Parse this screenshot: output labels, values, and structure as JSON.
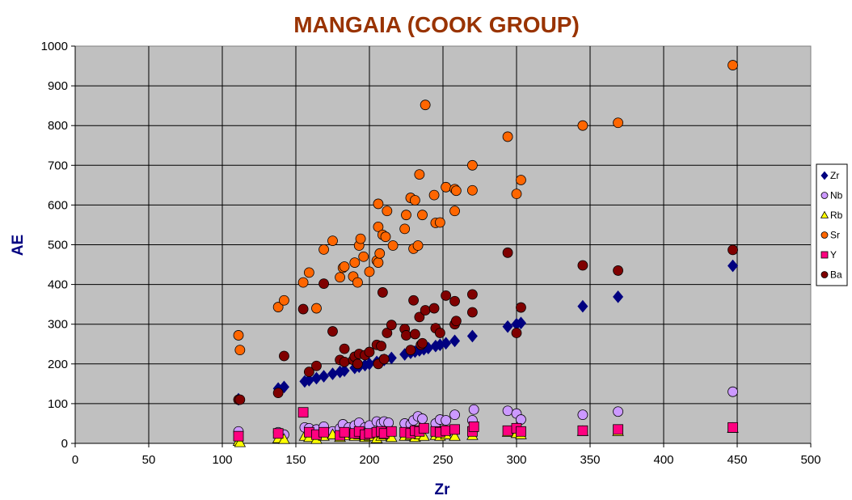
{
  "chart_data": {
    "type": "scatter",
    "title": "MANGAIA  (COOK GROUP)",
    "xlabel": "Zr",
    "ylabel": "AE",
    "xlim": [
      0,
      500
    ],
    "ylim": [
      0,
      1000
    ],
    "x_ticks": [
      "0",
      "50",
      "100",
      "150",
      "200",
      "250",
      "300",
      "350",
      "400",
      "450",
      "500"
    ],
    "y_ticks": [
      "0",
      "100",
      "200",
      "300",
      "400",
      "500",
      "600",
      "700",
      "800",
      "900",
      "1000"
    ],
    "grid": true,
    "legend_position": "right",
    "series": [
      {
        "name": "Zr",
        "marker": "diamond",
        "color": "#000080",
        "points": [
          [
            111,
            111
          ],
          [
            138,
            138
          ],
          [
            142,
            142
          ],
          [
            156,
            156
          ],
          [
            159,
            159
          ],
          [
            164,
            164
          ],
          [
            169,
            169
          ],
          [
            175,
            175
          ],
          [
            180,
            180
          ],
          [
            183,
            183
          ],
          [
            190,
            190
          ],
          [
            193,
            193
          ],
          [
            197,
            197
          ],
          [
            200,
            200
          ],
          [
            205,
            205
          ],
          [
            208,
            208
          ],
          [
            210,
            210
          ],
          [
            215,
            215
          ],
          [
            224,
            224
          ],
          [
            228,
            228
          ],
          [
            231,
            231
          ],
          [
            234,
            234
          ],
          [
            237,
            237
          ],
          [
            240,
            240
          ],
          [
            245,
            245
          ],
          [
            248,
            248
          ],
          [
            252,
            252
          ],
          [
            258,
            258
          ],
          [
            270,
            270
          ],
          [
            294,
            294
          ],
          [
            300,
            300
          ],
          [
            303,
            303
          ],
          [
            345,
            345
          ],
          [
            369,
            369
          ],
          [
            447,
            447
          ]
        ]
      },
      {
        "name": "Nb",
        "marker": "circle",
        "color": "#CC99FF",
        "points": [
          [
            111,
            30
          ],
          [
            138,
            28
          ],
          [
            142,
            22
          ],
          [
            156,
            40
          ],
          [
            159,
            38
          ],
          [
            164,
            35
          ],
          [
            169,
            42
          ],
          [
            175,
            30
          ],
          [
            180,
            38
          ],
          [
            182,
            48
          ],
          [
            186,
            40
          ],
          [
            190,
            45
          ],
          [
            193,
            52
          ],
          [
            197,
            40
          ],
          [
            200,
            45
          ],
          [
            205,
            55
          ],
          [
            208,
            50
          ],
          [
            210,
            55
          ],
          [
            213,
            52
          ],
          [
            224,
            50
          ],
          [
            228,
            48
          ],
          [
            230,
            58
          ],
          [
            233,
            68
          ],
          [
            236,
            62
          ],
          [
            245,
            50
          ],
          [
            248,
            60
          ],
          [
            252,
            58
          ],
          [
            258,
            72
          ],
          [
            270,
            58
          ],
          [
            271,
            85
          ],
          [
            294,
            82
          ],
          [
            300,
            75
          ],
          [
            303,
            60
          ],
          [
            345,
            72
          ],
          [
            369,
            80
          ],
          [
            447,
            130
          ]
        ]
      },
      {
        "name": "Rb",
        "marker": "triangle",
        "color": "#FFFF00",
        "points": [
          [
            111,
            5
          ],
          [
            112,
            2
          ],
          [
            138,
            12
          ],
          [
            142,
            10
          ],
          [
            156,
            18
          ],
          [
            159,
            15
          ],
          [
            164,
            10
          ],
          [
            169,
            18
          ],
          [
            175,
            22
          ],
          [
            180,
            15
          ],
          [
            183,
            20
          ],
          [
            190,
            18
          ],
          [
            193,
            22
          ],
          [
            197,
            15
          ],
          [
            200,
            18
          ],
          [
            205,
            12
          ],
          [
            208,
            18
          ],
          [
            210,
            22
          ],
          [
            215,
            15
          ],
          [
            224,
            18
          ],
          [
            228,
            20
          ],
          [
            231,
            15
          ],
          [
            234,
            22
          ],
          [
            237,
            18
          ],
          [
            245,
            20
          ],
          [
            248,
            18
          ],
          [
            252,
            22
          ],
          [
            258,
            18
          ],
          [
            270,
            20
          ],
          [
            294,
            28
          ],
          [
            300,
            25
          ],
          [
            303,
            22
          ],
          [
            345,
            30
          ],
          [
            369,
            30
          ],
          [
            447,
            38
          ]
        ]
      },
      {
        "name": "Sr",
        "marker": "circle",
        "color": "#FF6600",
        "points": [
          [
            111,
            272
          ],
          [
            112,
            235
          ],
          [
            138,
            343
          ],
          [
            142,
            360
          ],
          [
            155,
            405
          ],
          [
            159,
            430
          ],
          [
            164,
            340
          ],
          [
            169,
            488
          ],
          [
            175,
            510
          ],
          [
            180,
            418
          ],
          [
            182,
            442
          ],
          [
            183,
            445
          ],
          [
            189,
            420
          ],
          [
            190,
            455
          ],
          [
            192,
            405
          ],
          [
            193,
            498
          ],
          [
            194,
            515
          ],
          [
            196,
            470
          ],
          [
            200,
            432
          ],
          [
            205,
            460
          ],
          [
            206,
            455
          ],
          [
            206,
            603
          ],
          [
            206,
            545
          ],
          [
            207,
            478
          ],
          [
            209,
            525
          ],
          [
            211,
            520
          ],
          [
            212,
            585
          ],
          [
            216,
            498
          ],
          [
            224,
            540
          ],
          [
            225,
            575
          ],
          [
            228,
            618
          ],
          [
            230,
            490
          ],
          [
            231,
            612
          ],
          [
            233,
            498
          ],
          [
            234,
            677
          ],
          [
            236,
            575
          ],
          [
            238,
            852
          ],
          [
            244,
            625
          ],
          [
            245,
            555
          ],
          [
            248,
            556
          ],
          [
            252,
            645
          ],
          [
            258,
            585
          ],
          [
            258,
            640
          ],
          [
            259,
            636
          ],
          [
            270,
            700
          ],
          [
            270,
            637
          ],
          [
            294,
            772
          ],
          [
            300,
            628
          ],
          [
            303,
            663
          ],
          [
            345,
            800
          ],
          [
            369,
            807
          ],
          [
            447,
            952
          ]
        ]
      },
      {
        "name": "Y",
        "marker": "square",
        "color": "#FF0080",
        "points": [
          [
            111,
            18
          ],
          [
            138,
            25
          ],
          [
            155,
            78
          ],
          [
            159,
            28
          ],
          [
            164,
            22
          ],
          [
            169,
            28
          ],
          [
            180,
            20
          ],
          [
            183,
            28
          ],
          [
            190,
            25
          ],
          [
            193,
            30
          ],
          [
            197,
            22
          ],
          [
            200,
            25
          ],
          [
            205,
            28
          ],
          [
            208,
            30
          ],
          [
            210,
            25
          ],
          [
            215,
            30
          ],
          [
            224,
            28
          ],
          [
            228,
            25
          ],
          [
            231,
            32
          ],
          [
            234,
            30
          ],
          [
            237,
            38
          ],
          [
            245,
            30
          ],
          [
            248,
            28
          ],
          [
            252,
            32
          ],
          [
            258,
            35
          ],
          [
            270,
            30
          ],
          [
            271,
            42
          ],
          [
            294,
            32
          ],
          [
            300,
            38
          ],
          [
            303,
            30
          ],
          [
            345,
            32
          ],
          [
            369,
            35
          ],
          [
            447,
            40
          ]
        ]
      },
      {
        "name": "Ba",
        "marker": "circle",
        "color": "#800000",
        "points": [
          [
            111,
            110
          ],
          [
            112,
            110
          ],
          [
            138,
            127
          ],
          [
            142,
            220
          ],
          [
            155,
            338
          ],
          [
            159,
            180
          ],
          [
            164,
            195
          ],
          [
            169,
            402
          ],
          [
            175,
            282
          ],
          [
            180,
            210
          ],
          [
            183,
            205
          ],
          [
            183,
            238
          ],
          [
            189,
            210
          ],
          [
            190,
            218
          ],
          [
            192,
            200
          ],
          [
            193,
            225
          ],
          [
            197,
            222
          ],
          [
            200,
            230
          ],
          [
            205,
            248
          ],
          [
            206,
            200
          ],
          [
            208,
            245
          ],
          [
            209,
            380
          ],
          [
            210,
            212
          ],
          [
            212,
            278
          ],
          [
            215,
            298
          ],
          [
            224,
            288
          ],
          [
            225,
            272
          ],
          [
            228,
            235
          ],
          [
            230,
            360
          ],
          [
            231,
            275
          ],
          [
            234,
            318
          ],
          [
            235,
            248
          ],
          [
            236,
            252
          ],
          [
            238,
            335
          ],
          [
            244,
            340
          ],
          [
            245,
            290
          ],
          [
            248,
            278
          ],
          [
            252,
            372
          ],
          [
            258,
            300
          ],
          [
            258,
            358
          ],
          [
            259,
            308
          ],
          [
            270,
            330
          ],
          [
            270,
            375
          ],
          [
            294,
            480
          ],
          [
            300,
            278
          ],
          [
            303,
            342
          ],
          [
            345,
            448
          ],
          [
            369,
            435
          ],
          [
            447,
            487
          ]
        ]
      }
    ]
  }
}
